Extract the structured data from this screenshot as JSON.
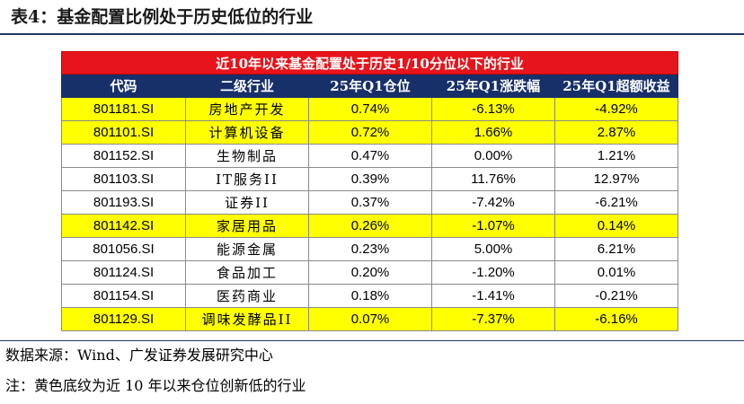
{
  "title": "表4：基金配置比例处于历史低位的行业",
  "table": {
    "banner": "近10年以来基金配置处于历史1/10分位以下的行业",
    "headers": [
      "代码",
      "二级行业",
      "25年Q1仓位",
      "25年Q1涨跌幅",
      "25年Q1超额收益"
    ],
    "rows": [
      {
        "code": "801181.SI",
        "industry": "房地产开发",
        "position": "0.74%",
        "change": "-6.13%",
        "excess": "-4.92%",
        "highlight": true
      },
      {
        "code": "801101.SI",
        "industry": "计算机设备",
        "position": "0.72%",
        "change": "1.66%",
        "excess": "2.87%",
        "highlight": true
      },
      {
        "code": "801152.SI",
        "industry": "生物制品",
        "position": "0.47%",
        "change": "0.00%",
        "excess": "1.21%",
        "highlight": false
      },
      {
        "code": "801103.SI",
        "industry": "IT服务II",
        "position": "0.39%",
        "change": "11.76%",
        "excess": "12.97%",
        "highlight": false
      },
      {
        "code": "801193.SI",
        "industry": "证券II",
        "position": "0.37%",
        "change": "-7.42%",
        "excess": "-6.21%",
        "highlight": false
      },
      {
        "code": "801142.SI",
        "industry": "家居用品",
        "position": "0.26%",
        "change": "-1.07%",
        "excess": "0.14%",
        "highlight": true
      },
      {
        "code": "801056.SI",
        "industry": "能源金属",
        "position": "0.23%",
        "change": "5.00%",
        "excess": "6.21%",
        "highlight": false
      },
      {
        "code": "801124.SI",
        "industry": "食品加工",
        "position": "0.20%",
        "change": "-1.20%",
        "excess": "0.01%",
        "highlight": false
      },
      {
        "code": "801154.SI",
        "industry": "医药商业",
        "position": "0.18%",
        "change": "-1.41%",
        "excess": "-0.21%",
        "highlight": false
      },
      {
        "code": "801129.SI",
        "industry": "调味发酵品II",
        "position": "0.07%",
        "change": "-7.37%",
        "excess": "-6.16%",
        "highlight": true
      }
    ]
  },
  "source": "数据来源：Wind、广发证券发展研究中心",
  "note": "注：黄色底纹为近 10 年以来仓位创新低的行业",
  "colors": {
    "banner": "#e8141b",
    "header": "#17306a",
    "highlight": "#ffff00",
    "rule": "#1f3864"
  }
}
